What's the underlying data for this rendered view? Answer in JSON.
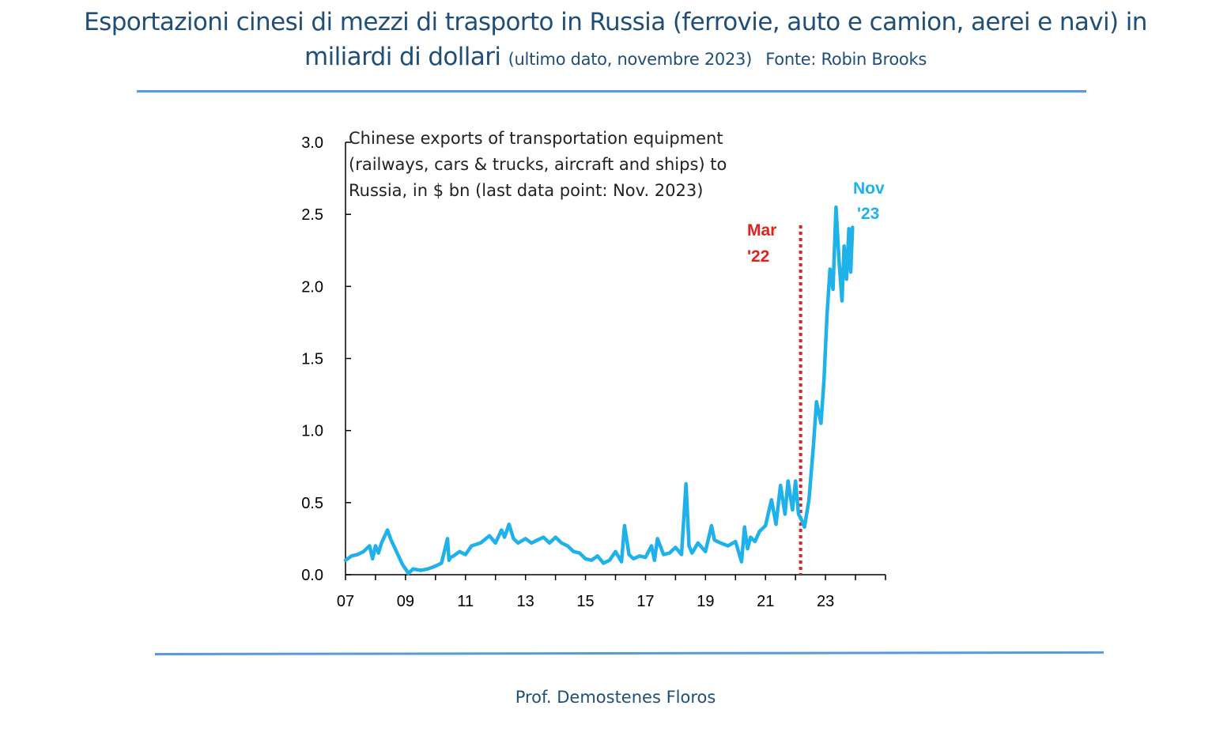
{
  "header": {
    "title_line1": "Esportazioni cinesi di mezzi di trasporto in Russia (ferrovie, auto e camion, aerei e navi) in",
    "title_line2": "miliardi di dollari",
    "subtitle": "(ultimo dato, novembre 2023)",
    "source": "Fonte: Robin Brooks"
  },
  "footer": {
    "author": "Prof. Demostenes Floros"
  },
  "colors": {
    "text": "#1f4e79",
    "rule": "#5b9bd5",
    "series": "#1fb1ea",
    "marker": "#e0211d"
  },
  "chart_data": {
    "type": "line",
    "title": "Chinese exports of transportation equipment (railways, cars & trucks, aircraft and ships) to Russia, in $ bn (last data point: Nov. 2023)",
    "annotation_lines": [
      "Chinese exports of transportation equipment",
      "(railways, cars & trucks, aircraft and ships) to",
      "Russia, in $ bn (last data point: Nov. 2023)"
    ],
    "xlabel": "",
    "ylabel": "",
    "xlim": [
      2007,
      2025
    ],
    "ylim": [
      0,
      3
    ],
    "x_ticks": [
      2007,
      2009,
      2011,
      2013,
      2015,
      2017,
      2019,
      2021,
      2023
    ],
    "x_tick_labels": [
      "07",
      "09",
      "11",
      "13",
      "15",
      "17",
      "19",
      "21",
      "23"
    ],
    "y_ticks": [
      0,
      0.5,
      1,
      1.5,
      2,
      2.5,
      3
    ],
    "y_tick_labels": [
      "0.0",
      "0.5",
      "1.0",
      "1.5",
      "2.0",
      "2.5",
      "3.0"
    ],
    "grid": false,
    "vline": {
      "x": 2022.17,
      "label_lines": [
        "Mar",
        "'22"
      ]
    },
    "end_label_lines": [
      "Nov",
      "'23"
    ],
    "series": [
      {
        "name": "Chinese exports of transportation equipment to Russia",
        "x": [
          2007.0,
          2007.2,
          2007.4,
          2007.6,
          2007.8,
          2007.9,
          2008.0,
          2008.1,
          2008.2,
          2008.4,
          2008.5,
          2008.7,
          2008.9,
          2009.1,
          2009.25,
          2009.5,
          2009.75,
          2010.0,
          2010.2,
          2010.4,
          2010.45,
          2010.5,
          2010.6,
          2010.8,
          2011.0,
          2011.2,
          2011.5,
          2011.8,
          2012.0,
          2012.2,
          2012.3,
          2012.45,
          2012.6,
          2012.75,
          2013.0,
          2013.2,
          2013.4,
          2013.6,
          2013.8,
          2014.0,
          2014.2,
          2014.4,
          2014.6,
          2014.8,
          2015.0,
          2015.2,
          2015.4,
          2015.6,
          2015.8,
          2016.0,
          2016.2,
          2016.3,
          2016.45,
          2016.6,
          2016.8,
          2017.0,
          2017.2,
          2017.3,
          2017.4,
          2017.6,
          2017.8,
          2018.0,
          2018.2,
          2018.35,
          2018.45,
          2018.55,
          2018.75,
          2019.0,
          2019.2,
          2019.3,
          2019.5,
          2019.75,
          2020.0,
          2020.2,
          2020.3,
          2020.4,
          2020.5,
          2020.65,
          2020.8,
          2021.0,
          2021.2,
          2021.35,
          2021.5,
          2021.65,
          2021.75,
          2021.9,
          2022.0,
          2022.1,
          2022.2,
          2022.3,
          2022.45,
          2022.6,
          2022.7,
          2022.85,
          2022.95,
          2023.05,
          2023.15,
          2023.25,
          2023.35,
          2023.45,
          2023.55,
          2023.62,
          2023.7,
          2023.78,
          2023.84,
          2023.9
        ],
        "values": [
          0.1,
          0.13,
          0.14,
          0.16,
          0.2,
          0.11,
          0.2,
          0.15,
          0.22,
          0.31,
          0.25,
          0.16,
          0.07,
          0.01,
          0.04,
          0.03,
          0.04,
          0.06,
          0.08,
          0.25,
          0.1,
          0.12,
          0.13,
          0.16,
          0.14,
          0.2,
          0.22,
          0.27,
          0.22,
          0.31,
          0.26,
          0.35,
          0.25,
          0.22,
          0.25,
          0.22,
          0.24,
          0.26,
          0.22,
          0.26,
          0.22,
          0.2,
          0.16,
          0.15,
          0.11,
          0.1,
          0.13,
          0.08,
          0.1,
          0.16,
          0.09,
          0.34,
          0.14,
          0.11,
          0.13,
          0.12,
          0.2,
          0.1,
          0.25,
          0.14,
          0.15,
          0.19,
          0.14,
          0.63,
          0.2,
          0.15,
          0.22,
          0.16,
          0.34,
          0.24,
          0.22,
          0.2,
          0.23,
          0.09,
          0.33,
          0.18,
          0.26,
          0.23,
          0.3,
          0.34,
          0.52,
          0.35,
          0.62,
          0.42,
          0.65,
          0.45,
          0.65,
          0.42,
          0.38,
          0.33,
          0.52,
          0.9,
          1.2,
          1.05,
          1.35,
          1.8,
          2.12,
          1.98,
          2.55,
          2.18,
          1.9,
          2.28,
          2.05,
          2.4,
          2.1,
          2.41
        ]
      }
    ]
  }
}
